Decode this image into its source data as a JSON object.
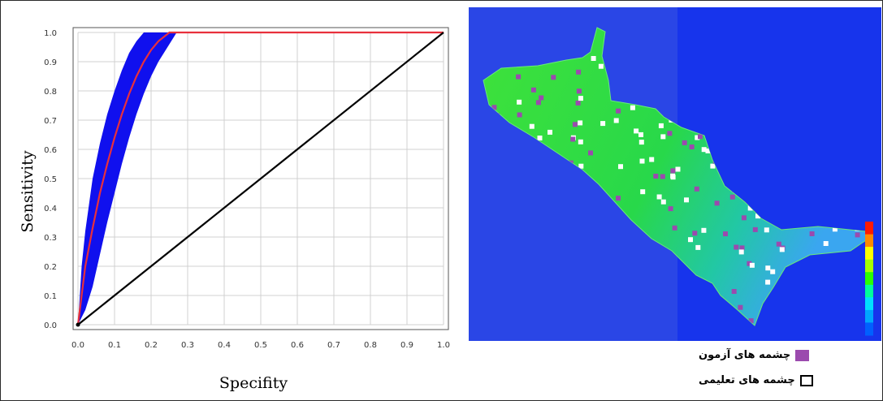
{
  "chart_data": [
    {
      "type": "line",
      "title": "",
      "xlabel": "Specifity",
      "ylabel": "Sensitivity",
      "xlim": [
        0.0,
        1.0
      ],
      "ylim": [
        0.0,
        1.0
      ],
      "x_ticks": [
        "0.0",
        "0.1",
        "0.2",
        "0.3",
        "0.4",
        "0.5",
        "0.6",
        "0.7",
        "0.8",
        "0.9",
        "1.0"
      ],
      "y_ticks": [
        "0.0",
        "0.1",
        "0.2",
        "0.3",
        "0.4",
        "0.5",
        "0.6",
        "0.7",
        "0.8",
        "0.9",
        "1.0"
      ],
      "grid": true,
      "series": [
        {
          "color": "#e8303c",
          "x": [
            0.0,
            0.01,
            0.02,
            0.04,
            0.06,
            0.08,
            0.1,
            0.12,
            0.14,
            0.16,
            0.18,
            0.2,
            0.22,
            0.24,
            0.25,
            0.26,
            0.3,
            0.4,
            0.5,
            0.6,
            0.7,
            0.8,
            0.9,
            1.0
          ],
          "y": [
            0.0,
            0.1,
            0.2,
            0.33,
            0.45,
            0.55,
            0.64,
            0.72,
            0.79,
            0.85,
            0.9,
            0.94,
            0.97,
            0.99,
            1.0,
            1.0,
            1.0,
            1.0,
            1.0,
            1.0,
            1.0,
            1.0,
            1.0,
            1.0
          ]
        },
        {
          "color": "#000000",
          "x": [
            0.0,
            1.0
          ],
          "y": [
            0.0,
            1.0
          ]
        }
      ],
      "band": {
        "color": "#1010ee",
        "upper": [
          [
            0.0,
            0.0
          ],
          [
            0.01,
            0.2
          ],
          [
            0.02,
            0.32
          ],
          [
            0.04,
            0.5
          ],
          [
            0.06,
            0.62
          ],
          [
            0.08,
            0.72
          ],
          [
            0.1,
            0.8
          ],
          [
            0.12,
            0.87
          ],
          [
            0.14,
            0.93
          ],
          [
            0.16,
            0.97
          ],
          [
            0.18,
            1.0
          ],
          [
            0.27,
            1.0
          ]
        ],
        "lower": [
          [
            0.27,
            1.0
          ],
          [
            0.26,
            0.98
          ],
          [
            0.24,
            0.94
          ],
          [
            0.22,
            0.9
          ],
          [
            0.2,
            0.85
          ],
          [
            0.18,
            0.79
          ],
          [
            0.16,
            0.72
          ],
          [
            0.14,
            0.64
          ],
          [
            0.12,
            0.55
          ],
          [
            0.1,
            0.45
          ],
          [
            0.08,
            0.35
          ],
          [
            0.06,
            0.24
          ],
          [
            0.04,
            0.13
          ],
          [
            0.02,
            0.05
          ],
          [
            0.0,
            0.0
          ]
        ]
      }
    }
  ],
  "map": {
    "background": "#1734ec",
    "region_color": "#2fd93a",
    "colorbar": [
      "#ff1a00",
      "#ff8a00",
      "#ffff00",
      "#a6ff00",
      "#2bff00",
      "#00ff9a",
      "#00e0ff",
      "#00a6ff",
      "#0060ff"
    ]
  },
  "legend": {
    "test_label": "چشمه های آزمون",
    "test_color": "#9b4aae",
    "train_label": "چشمه های تعلیمی",
    "train_color": "#ffffff"
  }
}
